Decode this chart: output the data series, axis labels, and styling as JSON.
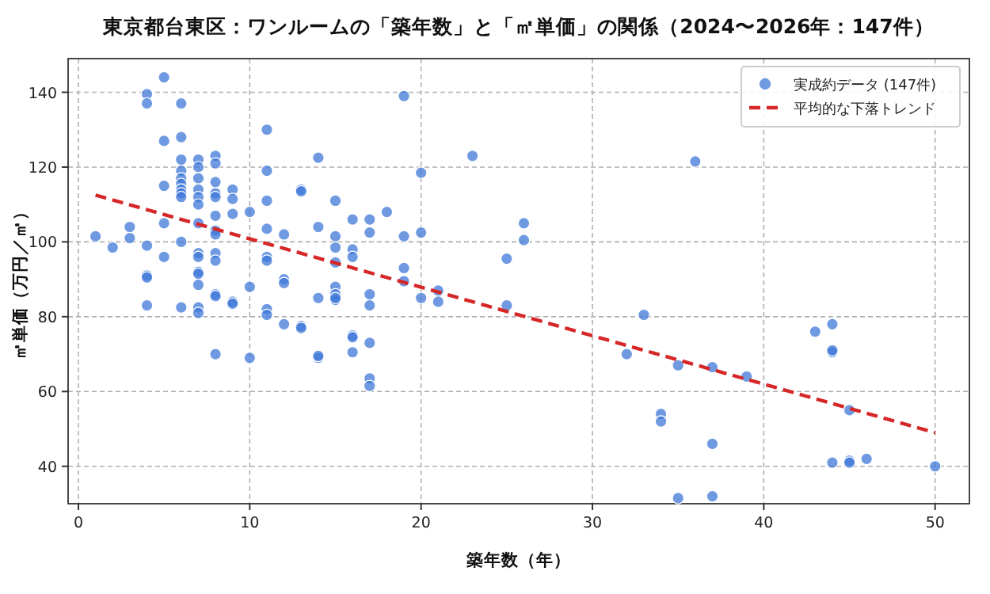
{
  "chart_data": {
    "type": "scatter",
    "title": "東京都台東区：ワンルームの「築年数」と「㎡単価」の関係（2024〜2026年：147件）",
    "xlabel": "築年数（年）",
    "ylabel": "㎡単価（万円／㎡）",
    "xlim": [
      -0.6,
      52
    ],
    "ylim": [
      30,
      149
    ],
    "xticks": [
      0,
      10,
      20,
      30,
      40,
      50
    ],
    "yticks": [
      40,
      60,
      80,
      100,
      120,
      140
    ],
    "grid": true,
    "legend": "top right",
    "series": [
      {
        "name": "実成約データ (147件)",
        "marker": "circle",
        "color": "#3f78d8",
        "x": [
          1,
          2,
          3,
          3,
          4,
          4,
          4,
          4,
          4,
          4,
          5,
          5,
          5,
          5,
          5,
          6,
          6,
          6,
          6,
          6,
          6,
          6,
          6,
          6,
          6,
          6,
          7,
          7,
          7,
          7,
          7,
          7,
          7,
          7,
          7,
          7,
          7,
          7,
          7,
          7,
          8,
          8,
          8,
          8,
          8,
          8,
          8,
          8,
          8,
          8,
          8,
          8,
          8,
          9,
          9,
          9,
          9,
          9,
          10,
          10,
          10,
          11,
          11,
          11,
          11,
          11,
          11,
          11,
          11,
          12,
          12,
          12,
          12,
          13,
          13,
          13,
          13,
          14,
          14,
          14,
          14,
          14,
          15,
          15,
          15,
          15,
          15,
          15,
          15,
          15,
          16,
          16,
          16,
          16,
          16,
          16,
          17,
          17,
          17,
          17,
          17,
          17,
          17,
          18,
          19,
          19,
          19,
          19,
          20,
          20,
          20,
          21,
          21,
          23,
          25,
          25,
          26,
          26,
          32,
          33,
          34,
          34,
          35,
          35,
          36,
          37,
          37,
          37,
          39,
          43,
          44,
          44,
          44,
          44,
          45,
          45,
          45,
          46,
          50
        ],
        "values": [
          101.5,
          98.5,
          101,
          104,
          139.5,
          137,
          99,
          91,
          90.5,
          83,
          144,
          127,
          115,
          105,
          96,
          137,
          128,
          122,
          119,
          117,
          115.5,
          114,
          113,
          112,
          100,
          82.5,
          122,
          120,
          117,
          114,
          112,
          110,
          105,
          97,
          96,
          92,
          91.5,
          88.5,
          82.5,
          81,
          123,
          121,
          116,
          113,
          112,
          107,
          103,
          102,
          97,
          95,
          86,
          85.5,
          70,
          114,
          111.5,
          107.5,
          84,
          83.5,
          108,
          88,
          69,
          130,
          119,
          111,
          103.5,
          96,
          95,
          82,
          80.5,
          102,
          90,
          89,
          78,
          114,
          113.5,
          77.5,
          77,
          122.5,
          104,
          85,
          69,
          69.5,
          111,
          101.5,
          98.5,
          94.5,
          88,
          86,
          84.5,
          85,
          106,
          98,
          96,
          75,
          74.5,
          70.5,
          106,
          102.5,
          86,
          83,
          73,
          63.5,
          61.5,
          108,
          139,
          101.5,
          93,
          89.5,
          118.5,
          102.5,
          85,
          87,
          84,
          123,
          95.5,
          83,
          105,
          100.5,
          70,
          80.5,
          54,
          52,
          31.5,
          67,
          121.5,
          66.5,
          46,
          32,
          64,
          76,
          78,
          70.5,
          71,
          41,
          55,
          41.5,
          41,
          42,
          40
        ]
      },
      {
        "name": "平均的な下落トレンド",
        "type": "line",
        "line_style": "dashed",
        "marker": "none",
        "color": "#d62728",
        "x": [
          1,
          50
        ],
        "values": [
          112.5,
          49
        ]
      }
    ]
  }
}
